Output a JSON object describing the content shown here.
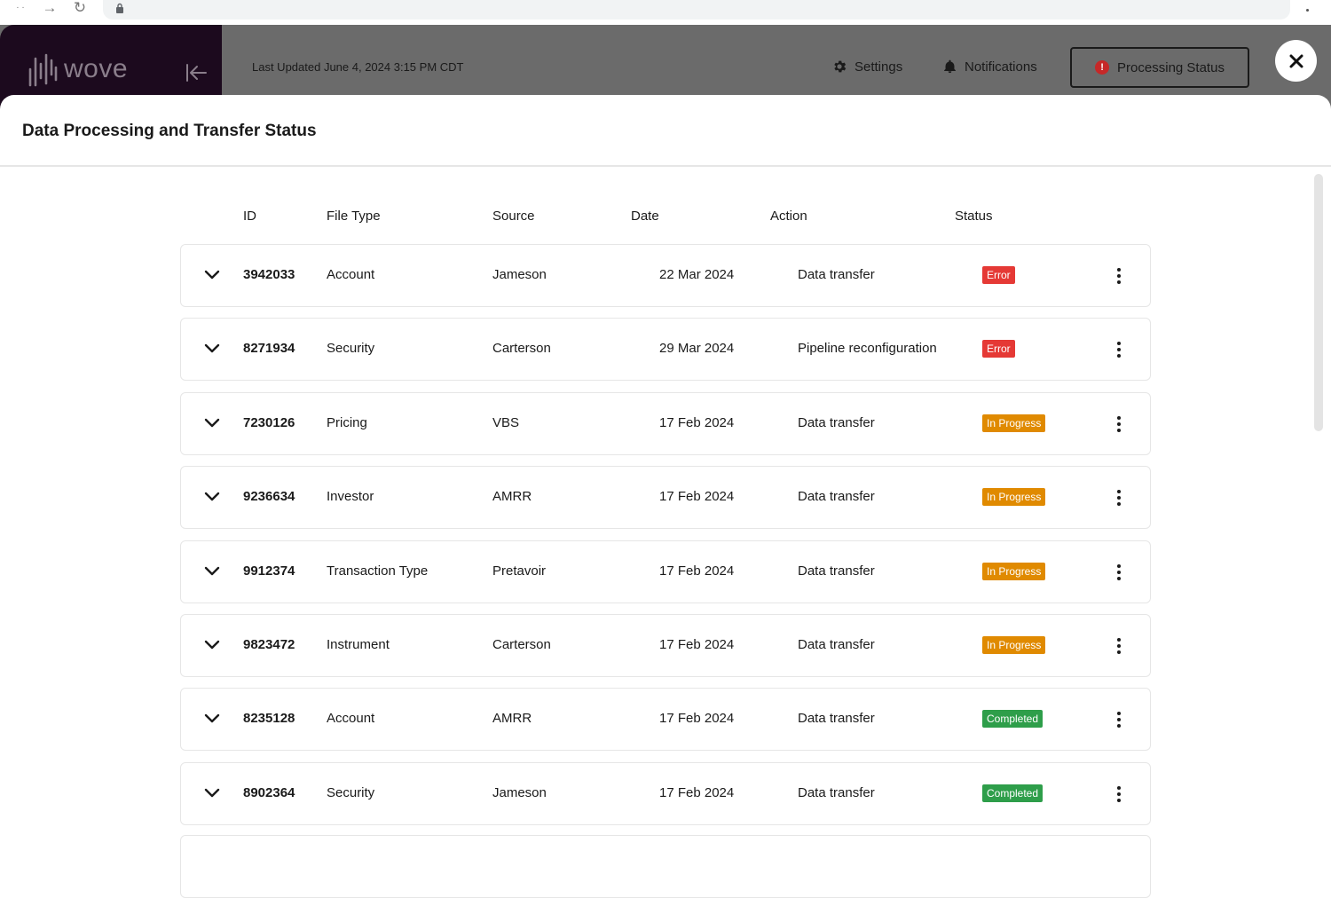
{
  "colors": {
    "brand_dark": "#1c0a1e",
    "header_overlay": "#6b6b6b",
    "error": "#e53935",
    "in_progress": "#e08a00",
    "completed": "#2e9e4a"
  },
  "header": {
    "logo_text": "wove",
    "last_updated": "Last Updated June 4, 2024 3:15 PM CDT",
    "settings_label": "Settings",
    "notifications_label": "Notifications",
    "processing_status_label": "Processing Status",
    "processing_alert_glyph": "!"
  },
  "panel": {
    "title": "Data Processing and Transfer Status"
  },
  "table": {
    "columns": {
      "id": "ID",
      "file_type": "File Type",
      "source": "Source",
      "date": "Date",
      "action": "Action",
      "status": "Status"
    },
    "rows": [
      {
        "id": "3942033",
        "file_type": "Account",
        "source": "Jameson",
        "date": "22 Mar 2024",
        "action": "Data transfer",
        "status": "Error",
        "status_color": "#e53935"
      },
      {
        "id": "8271934",
        "file_type": "Security",
        "source": "Carterson",
        "date": "29 Mar 2024",
        "action": "Pipeline reconfiguration",
        "status": "Error",
        "status_color": "#e53935"
      },
      {
        "id": "7230126",
        "file_type": "Pricing",
        "source": "VBS",
        "date": "17 Feb 2024",
        "action": "Data transfer",
        "status": "In Progress",
        "status_color": "#e08a00"
      },
      {
        "id": "9236634",
        "file_type": "Investor",
        "source": "AMRR",
        "date": "17 Feb 2024",
        "action": "Data transfer",
        "status": "In Progress",
        "status_color": "#e08a00"
      },
      {
        "id": "9912374",
        "file_type": "Transaction Type",
        "source": "Pretavoir",
        "date": "17 Feb 2024",
        "action": "Data transfer",
        "status": "In Progress",
        "status_color": "#e08a00"
      },
      {
        "id": "9823472",
        "file_type": "Instrument",
        "source": "Carterson",
        "date": "17 Feb 2024",
        "action": "Data transfer",
        "status": "In Progress",
        "status_color": "#e08a00"
      },
      {
        "id": "8235128",
        "file_type": "Account",
        "source": "AMRR",
        "date": "17 Feb 2024",
        "action": "Data transfer",
        "status": "Completed",
        "status_color": "#2e9e4a"
      },
      {
        "id": "8902364",
        "file_type": "Security",
        "source": "Jameson",
        "date": "17 Feb 2024",
        "action": "Data transfer",
        "status": "Completed",
        "status_color": "#2e9e4a"
      }
    ]
  }
}
